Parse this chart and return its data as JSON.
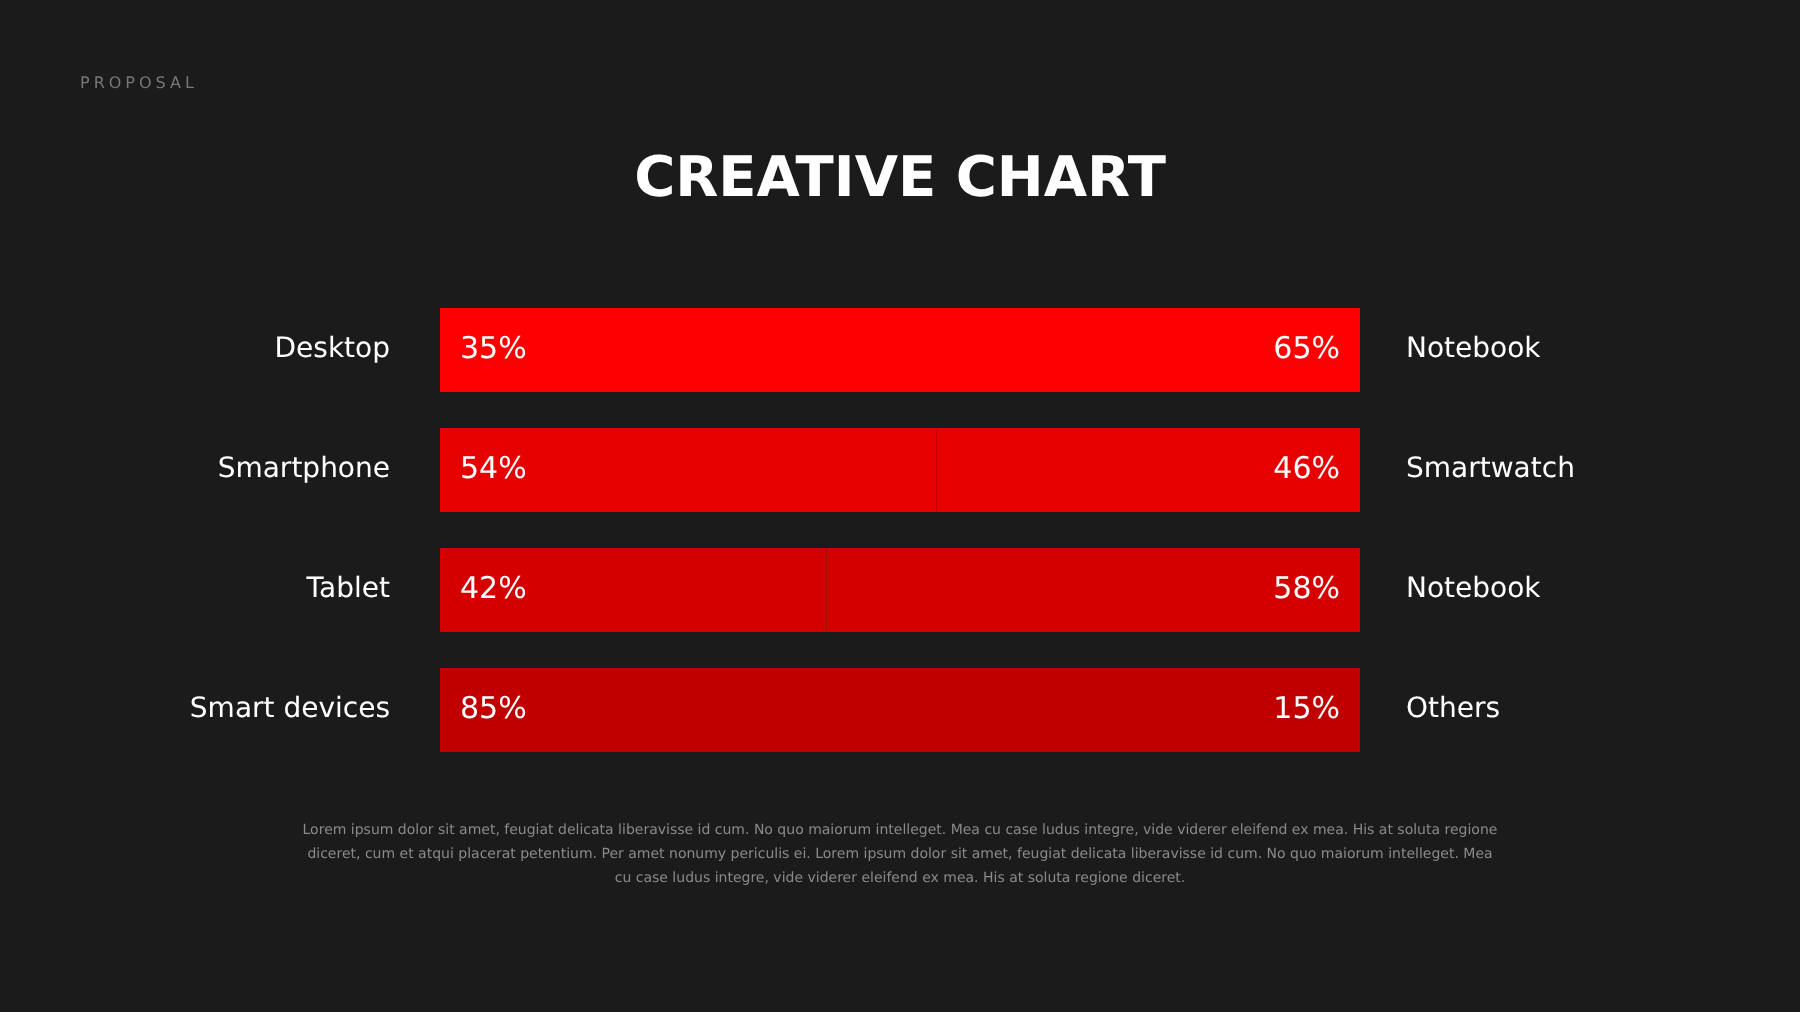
{
  "chart_data": {
    "type": "bar",
    "orientation": "horizontal",
    "stacked": true,
    "title": "CREATIVE CHART",
    "categories": [
      "Desktop",
      "Smartphone",
      "Tablet",
      "Smart devices"
    ],
    "y2_categories": [
      "Notebook",
      "Smartwatch",
      "Notebook",
      "Others"
    ],
    "xlim": [
      0,
      100
    ],
    "tick_labels": "y",
    "legend": false,
    "series": [
      {
        "colors": [
          "#ff0000",
          "#e60000",
          "#d40000",
          "#c00000"
        ],
        "values": [
          35,
          54,
          42,
          85
        ],
        "value_labels": [
          "35%",
          "54%",
          "42%",
          "85%"
        ]
      },
      {
        "colors": [
          "#ff0000",
          "#e60000",
          "#d40000",
          "#c00000"
        ],
        "values": [
          65,
          46,
          58,
          15
        ],
        "value_labels": [
          "65%",
          "46%",
          "58%",
          "15%"
        ]
      }
    ],
    "annotations": [
      "PROPOSAL",
      "Lorem ipsum dolor sit amet, feugiat delicata liberavisse id cum. No quo maiorum intelleget. Mea cu case ludus integre, vide viderer eleifend ex mea. His at soluta regione diceret, cum et atqui placerat petentium. Per amet nonumy periculis ei. Lorem ipsum dolor sit amet, feugiat delicata liberavisse id cum. No quo maiorum intelleget. Mea cu case ludus integre, vide viderer eleifend ex mea. His at soluta regione diceret."
    ]
  }
}
